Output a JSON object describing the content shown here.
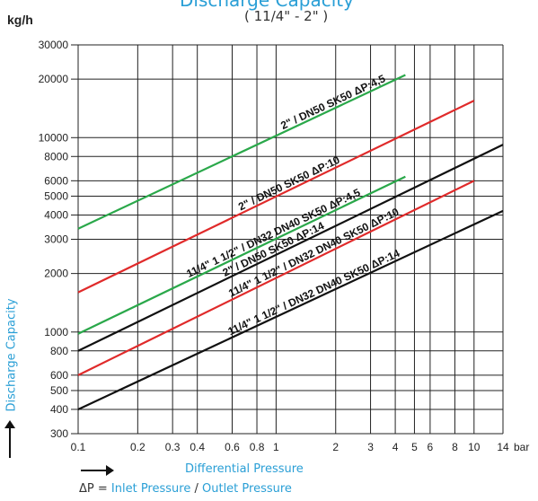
{
  "header": {
    "title_partial": "Discharge Capacity",
    "range_label": "( 11/4\" - 2\" )"
  },
  "chart_data": {
    "type": "line",
    "xlabel": "Differential Pressure",
    "ylabel": "Discharge Capacity",
    "x_unit": "bar",
    "y_unit": "kg/h",
    "x_scale": "log",
    "y_scale": "log",
    "xlim": [
      0.1,
      14
    ],
    "ylim": [
      300,
      30000
    ],
    "grid": true,
    "x_ticks": [
      {
        "value": 0.1,
        "label": "0.1"
      },
      {
        "value": 0.2,
        "label": "0.2"
      },
      {
        "value": 0.3,
        "label": "0.3"
      },
      {
        "value": 0.4,
        "label": "0.4"
      },
      {
        "value": 0.6,
        "label": "0.6"
      },
      {
        "value": 0.8,
        "label": "0.8"
      },
      {
        "value": 1,
        "label": "1"
      },
      {
        "value": 2,
        "label": "2"
      },
      {
        "value": 3,
        "label": "3"
      },
      {
        "value": 4,
        "label": "4"
      },
      {
        "value": 5,
        "label": "5"
      },
      {
        "value": 6,
        "label": "6"
      },
      {
        "value": 8,
        "label": "8"
      },
      {
        "value": 10,
        "label": "10"
      },
      {
        "value": 14,
        "label": "14"
      }
    ],
    "y_ticks": [
      {
        "value": 300,
        "label": "300"
      },
      {
        "value": 400,
        "label": "400"
      },
      {
        "value": 500,
        "label": "500"
      },
      {
        "value": 600,
        "label": "600"
      },
      {
        "value": 800,
        "label": "800"
      },
      {
        "value": 1000,
        "label": "1000"
      },
      {
        "value": 2000,
        "label": "2000"
      },
      {
        "value": 3000,
        "label": "3000"
      },
      {
        "value": 4000,
        "label": "4000"
      },
      {
        "value": 5000,
        "label": "5000"
      },
      {
        "value": 6000,
        "label": "6000"
      },
      {
        "value": 8000,
        "label": "8000"
      },
      {
        "value": 10000,
        "label": "10000"
      },
      {
        "value": 20000,
        "label": "20000"
      },
      {
        "value": 30000,
        "label": "30000"
      }
    ],
    "series": [
      {
        "name": "2\" / DN50 SK50 ΔP:4,5",
        "color": "#2aa84a",
        "x": [
          0.1,
          4.5
        ],
        "y": [
          3400,
          21000
        ]
      },
      {
        "name": "2\" / DN50 SK50 ΔP:10",
        "color": "#e02a2a",
        "x": [
          0.1,
          10
        ],
        "y": [
          1600,
          15500
        ]
      },
      {
        "name": "11/4\" 1 1/2\" / DN32 DN40 SK50 ΔP:4,5",
        "color": "#2aa84a",
        "x": [
          0.1,
          4.5
        ],
        "y": [
          980,
          6300
        ]
      },
      {
        "name": "2\" / DN50 SK50 ΔP:14",
        "color": "#111111",
        "x": [
          0.1,
          14
        ],
        "y": [
          800,
          9200
        ]
      },
      {
        "name": "11/4\" 1 1/2\" / DN32 DN40 SK50 ΔP:10",
        "color": "#e02a2a",
        "x": [
          0.1,
          10
        ],
        "y": [
          600,
          6000
        ]
      },
      {
        "name": "11/4\" 1 1/2\" / DN32 DN40 SK50 ΔP:14",
        "color": "#111111",
        "x": [
          0.1,
          14
        ],
        "y": [
          400,
          4200
        ]
      }
    ]
  },
  "footer": {
    "delta_symbol": "ΔP",
    "eq": " = ",
    "inlet": "Inlet Pressure",
    "slash": " / ",
    "outlet": "Outlet Pressure"
  }
}
